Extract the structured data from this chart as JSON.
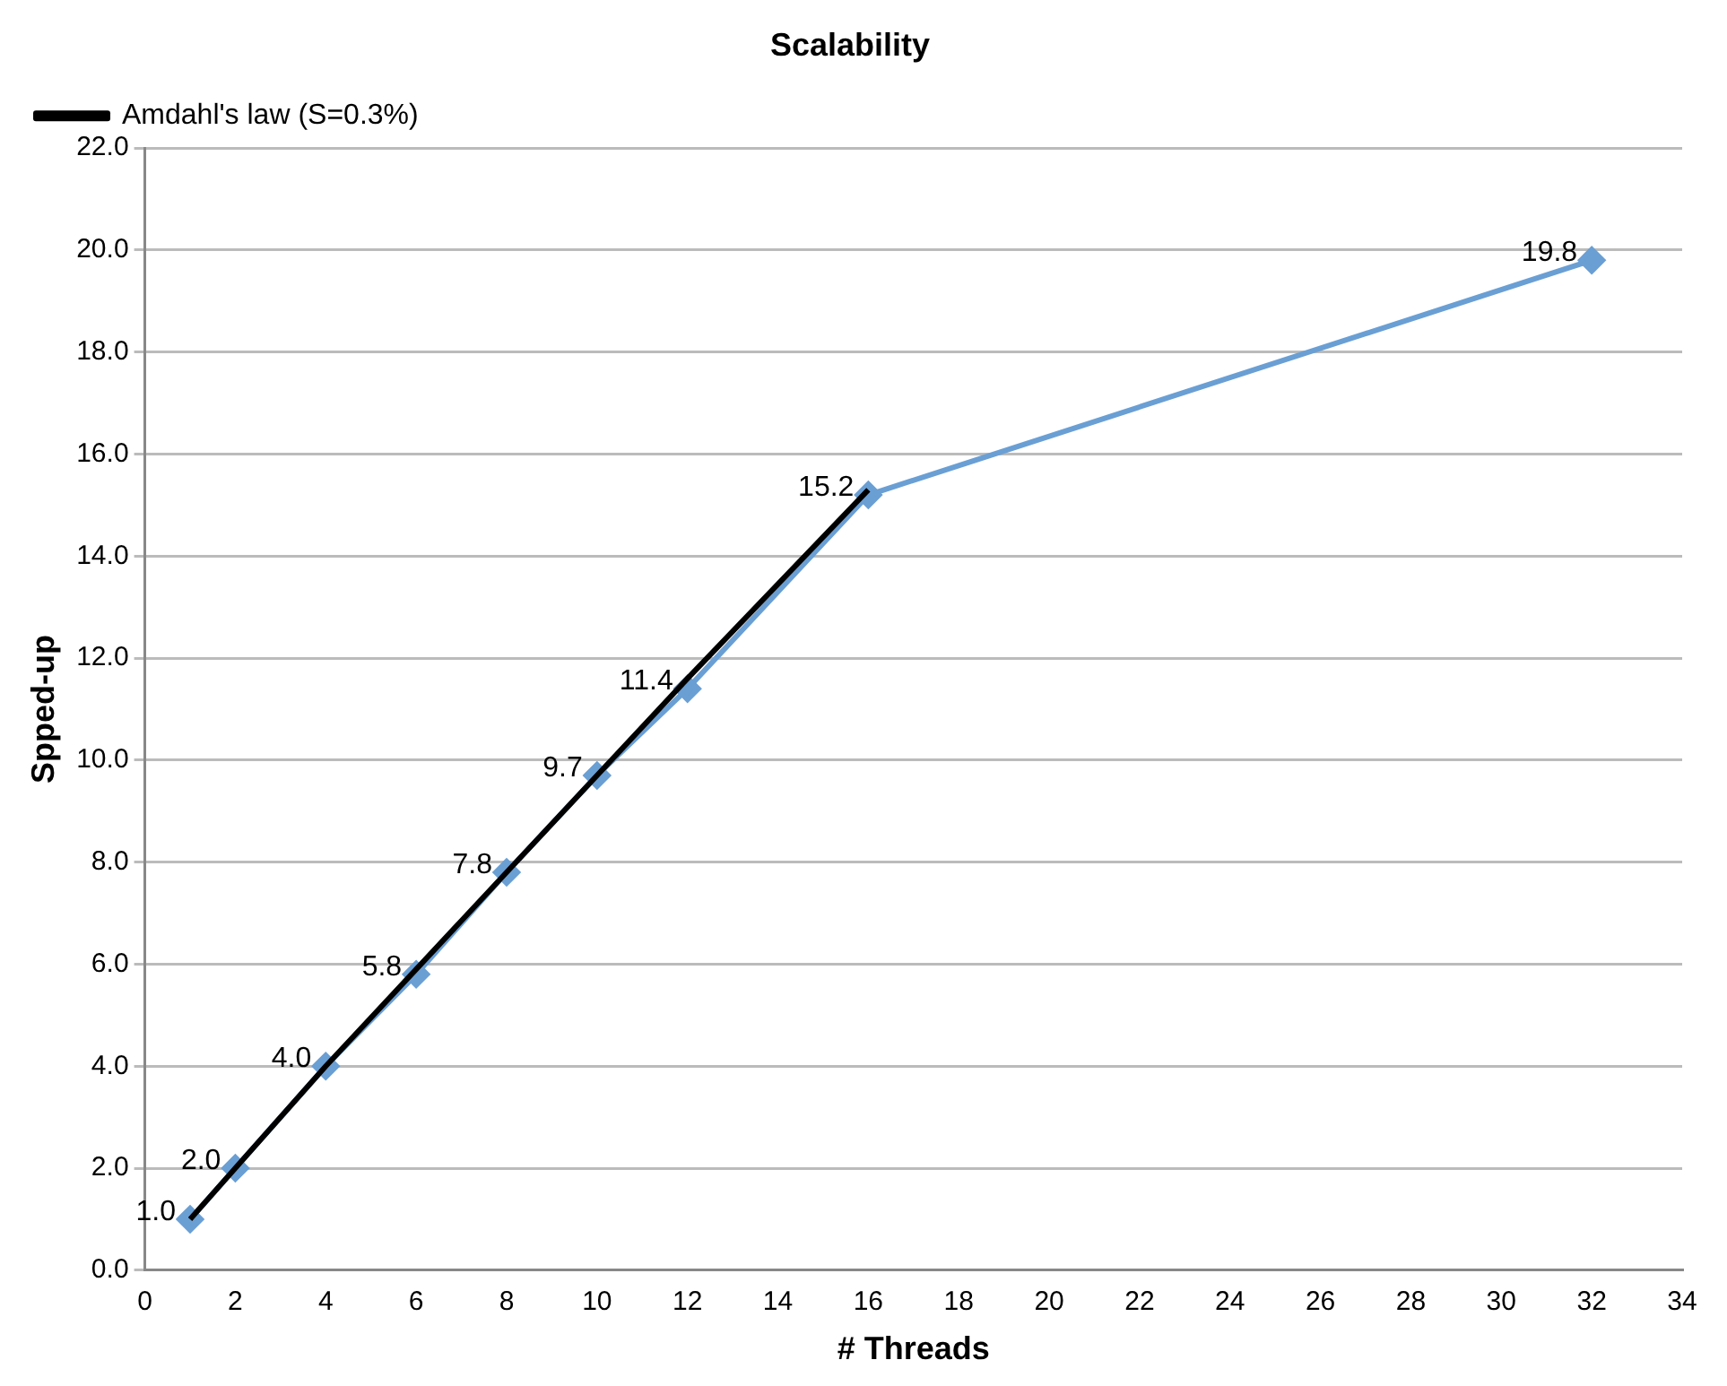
{
  "chart_data": {
    "type": "line",
    "title": "Scalability",
    "xlabel": "# Threads",
    "ylabel": "Spped-up",
    "xlim": [
      0,
      34
    ],
    "xticks": [
      0,
      2,
      4,
      6,
      8,
      10,
      12,
      14,
      16,
      18,
      20,
      22,
      24,
      26,
      28,
      30,
      32,
      34
    ],
    "ylim": [
      0,
      22
    ],
    "yticks": [
      {
        "value": 0,
        "label": "0.0"
      },
      {
        "value": 2,
        "label": "2.0"
      },
      {
        "value": 4,
        "label": "4.0"
      },
      {
        "value": 6,
        "label": "6.0"
      },
      {
        "value": 8,
        "label": "8.0"
      },
      {
        "value": 10,
        "label": "10.0"
      },
      {
        "value": 12,
        "label": "12.0"
      },
      {
        "value": 14,
        "label": "14.0"
      },
      {
        "value": 16,
        "label": "16.0"
      },
      {
        "value": 18,
        "label": "18.0"
      },
      {
        "value": 20,
        "label": "20.0"
      },
      {
        "value": 22,
        "label": "22.0"
      }
    ],
    "grid": "y",
    "legend": "top left",
    "line_style": "solid",
    "series": [
      {
        "color": "#6a9fd4",
        "marker": "diamond",
        "x": [
          1,
          2,
          4,
          6,
          8,
          10,
          12,
          16,
          32
        ],
        "values": [
          1.0,
          2.0,
          4.0,
          5.8,
          7.8,
          9.7,
          11.4,
          15.2,
          19.8
        ],
        "value_labels": [
          "1.0",
          "2.0",
          "4.0",
          "5.8",
          "7.8",
          "9.7",
          "11.4",
          "15.2",
          "19.8"
        ]
      },
      {
        "name": "Amdahl's law (S=0.3%)",
        "color": "#000000",
        "marker": "none",
        "x": [
          1,
          2,
          4,
          8,
          12,
          16
        ],
        "values": [
          1.0,
          2.0,
          4.0,
          7.8,
          11.6,
          15.3
        ]
      }
    ]
  }
}
